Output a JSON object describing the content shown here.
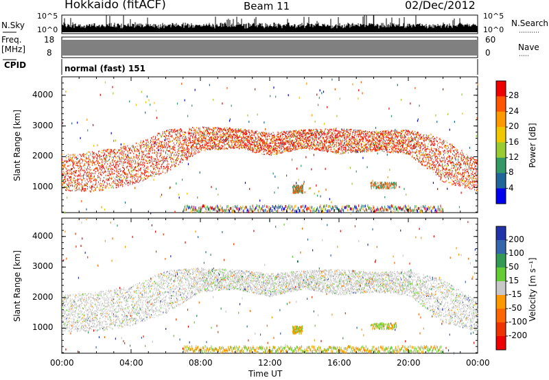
{
  "header": {
    "station": "Hokkaido (fitACF)",
    "beam": "Beam 11",
    "date": "02/Dec/2012"
  },
  "nsky_panel": {
    "left_label": "N.Sky",
    "tick_top": "10^5",
    "tick_bottom": "10^0",
    "right_tick_top": "10^5",
    "right_tick_bottom": "10^0",
    "right_label": "N.Search"
  },
  "freq_panel": {
    "label_line1": "Freq.",
    "label_line2": "[MHz]",
    "tick_top": "18",
    "tick_bottom": "8",
    "right_tick_top": "60",
    "right_tick_bottom": "0",
    "right_label": "Nave"
  },
  "cpid_panel": {
    "label": "CPID",
    "value": "normal (fast) 151"
  },
  "power_panel": {
    "ylabel": "Slant Range [km]",
    "yticks": [
      "4000",
      "3000",
      "2000",
      "1000"
    ],
    "colorbar_label": "Power [dB]",
    "colorbar_ticks": [
      "28",
      "24",
      "20",
      "16",
      "12",
      "8",
      "4"
    ],
    "colors": [
      "#ee0000",
      "#ff5500",
      "#ff9900",
      "#f0c800",
      "#99cc33",
      "#339966",
      "#226699",
      "#0000ee"
    ]
  },
  "velocity_panel": {
    "ylabel": "Slant Range [km]",
    "yticks": [
      "4000",
      "3000",
      "2000",
      "1000"
    ],
    "colorbar_label": "Velocity [m s⁻¹]",
    "colorbar_ticks": [
      "200",
      "100",
      "50",
      "15",
      "-15",
      "-50",
      "-100",
      "-200"
    ],
    "colors": [
      "#2233aa",
      "#3366aa",
      "#339955",
      "#66cc33",
      "#c8c8c8",
      "#ff9900",
      "#ff6600",
      "#ee3300",
      "#ee0000"
    ]
  },
  "x_axis": {
    "ticks": [
      "00:00",
      "04:00",
      "08:00",
      "12:00",
      "16:00",
      "20:00",
      "00:00"
    ],
    "xlabel": "Time UT"
  },
  "chart_data": {
    "type": "heatmap",
    "title": "Hokkaido (fitACF)",
    "xlabel": "Time UT",
    "ylabel": "Slant Range [km]",
    "x_ticks_hours": [
      0,
      4,
      8,
      12,
      16,
      20,
      24
    ],
    "y_range_km": [
      180,
      4600
    ],
    "power_range_db": [
      0,
      32
    ],
    "velocity_range_ms": [
      -250,
      250
    ],
    "echo_band_upper_km": [
      {
        "hour": 0,
        "min_km": 900,
        "max_km": 2100
      },
      {
        "hour": 2,
        "min_km": 900,
        "max_km": 2200
      },
      {
        "hour": 4,
        "min_km": 1100,
        "max_km": 2400
      },
      {
        "hour": 6,
        "min_km": 1500,
        "max_km": 2900
      },
      {
        "hour": 8,
        "min_km": 2200,
        "max_km": 3000
      },
      {
        "hour": 10,
        "min_km": 2300,
        "max_km": 2950
      },
      {
        "hour": 12,
        "min_km": 2050,
        "max_km": 2800
      },
      {
        "hour": 14,
        "min_km": 2300,
        "max_km": 2900
      },
      {
        "hour": 16,
        "min_km": 2100,
        "max_km": 2950
      },
      {
        "hour": 18,
        "min_km": 2200,
        "max_km": 2850
      },
      {
        "hour": 20,
        "min_km": 2100,
        "max_km": 2900
      },
      {
        "hour": 22,
        "min_km": 1200,
        "max_km": 2600
      },
      {
        "hour": 24,
        "min_km": 900,
        "max_km": 1900
      }
    ],
    "echo_band_ground_km": [
      {
        "hour": 7.5,
        "min_km": 250,
        "max_km": 450
      },
      {
        "hour": 21.5,
        "min_km": 250,
        "max_km": 450
      }
    ]
  }
}
